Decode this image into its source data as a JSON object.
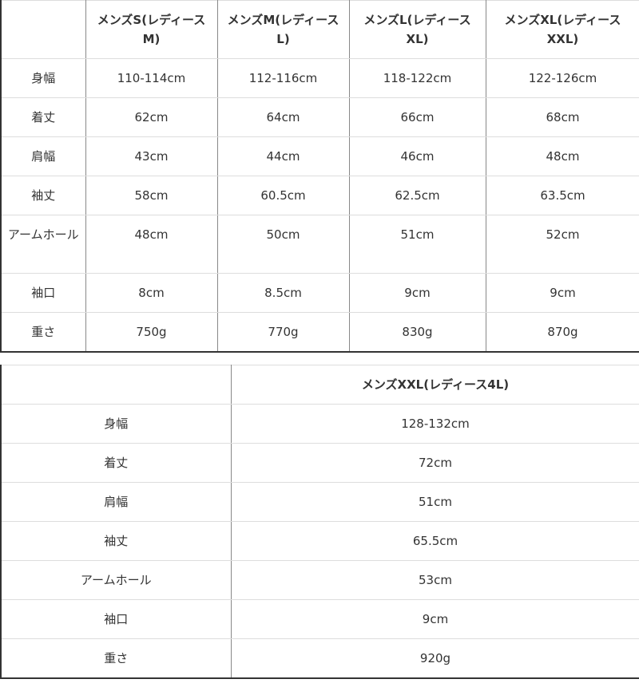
{
  "table1": {
    "headers": [
      "",
      "メンズS(レディースM)",
      "メンズM(レディースL)",
      "メンズL(レディースXL)",
      "メンズXL(レディースXXL)"
    ],
    "rows": [
      {
        "label": "身幅",
        "values": [
          "110-114cm",
          "112-116cm",
          "118-122cm",
          "122-126cm"
        ]
      },
      {
        "label": "着丈",
        "values": [
          "62cm",
          "64cm",
          "66cm",
          "68cm"
        ]
      },
      {
        "label": "肩幅",
        "values": [
          "43cm",
          "44cm",
          "46cm",
          "48cm"
        ]
      },
      {
        "label": "袖丈",
        "values": [
          "58cm",
          "60.5cm",
          "62.5cm",
          "63.5cm"
        ]
      },
      {
        "label": "アームホール",
        "values": [
          "48cm",
          "50cm",
          "51cm",
          "52cm"
        ]
      },
      {
        "label": "袖口",
        "values": [
          "8cm",
          "8.5cm",
          "9cm",
          "9cm"
        ]
      },
      {
        "label": "重さ",
        "values": [
          "750g",
          "770g",
          "830g",
          "870g"
        ]
      }
    ]
  },
  "table2": {
    "headers": [
      "",
      "メンズXXL(レディース4L)"
    ],
    "rows": [
      {
        "label": "身幅",
        "values": [
          "128-132cm"
        ]
      },
      {
        "label": "着丈",
        "values": [
          "72cm"
        ]
      },
      {
        "label": "肩幅",
        "values": [
          "51cm"
        ]
      },
      {
        "label": "袖丈",
        "values": [
          "65.5cm"
        ]
      },
      {
        "label": "アームホール",
        "values": [
          "53cm"
        ]
      },
      {
        "label": "袖口",
        "values": [
          "9cm"
        ]
      },
      {
        "label": "重さ",
        "values": [
          "920g"
        ]
      }
    ]
  }
}
